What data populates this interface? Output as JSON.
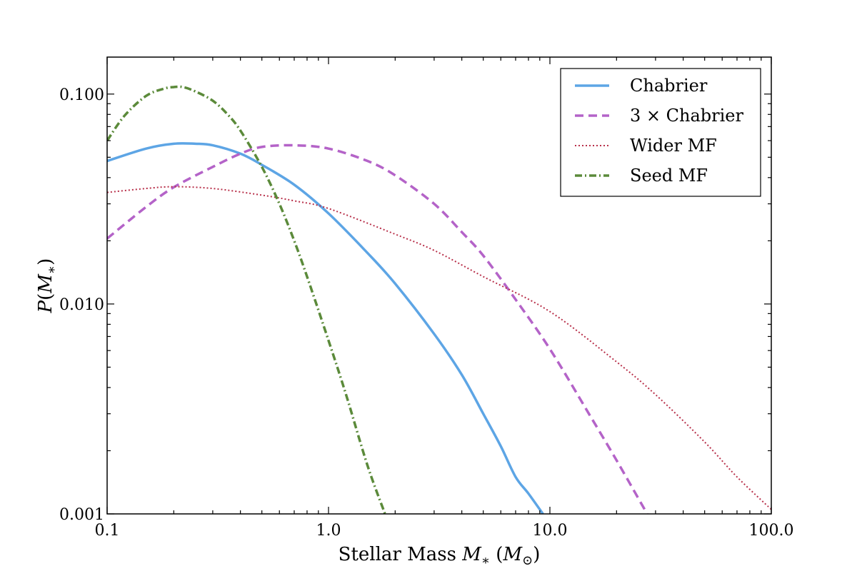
{
  "chart_data": {
    "type": "line",
    "xlabel": {
      "prefix": "Stellar Mass ",
      "symbol": "M",
      "sub": "∗",
      "unit_open": " (",
      "unit_symbol": "M",
      "unit_sub": "⊙",
      "unit_close": ")"
    },
    "ylabel": {
      "symbol": "P",
      "open": "(",
      "arg": "M",
      "sub": "∗",
      "close": ")"
    },
    "x_scale": "log",
    "y_scale": "log",
    "xlim": [
      0.1,
      100.0
    ],
    "ylim": [
      0.001,
      0.15
    ],
    "x_ticks": [
      {
        "value": 0.1,
        "label": "0.1"
      },
      {
        "value": 1.0,
        "label": "1.0"
      },
      {
        "value": 10.0,
        "label": "10.0"
      },
      {
        "value": 100.0,
        "label": "100.0"
      }
    ],
    "y_ticks": [
      {
        "value": 0.001,
        "label": "0.001"
      },
      {
        "value": 0.01,
        "label": "0.010"
      },
      {
        "value": 0.1,
        "label": "0.100"
      }
    ],
    "grid": false,
    "legend_position": "top-right",
    "series": [
      {
        "name": "Chabrier",
        "color": "#5da5e5",
        "style": "solid",
        "x": [
          0.1,
          0.15,
          0.2,
          0.25,
          0.3,
          0.4,
          0.5,
          0.7,
          1.0,
          1.5,
          2.0,
          3.0,
          4.0,
          5.0,
          6.0,
          7.0,
          8.0,
          9.3
        ],
        "y": [
          0.048,
          0.055,
          0.058,
          0.058,
          0.057,
          0.052,
          0.046,
          0.037,
          0.027,
          0.0175,
          0.0125,
          0.0072,
          0.0046,
          0.003,
          0.0021,
          0.0015,
          0.00125,
          0.001
        ]
      },
      {
        "name": "3 × Chabrier",
        "color": "#b463c8",
        "style": "dashed",
        "x": [
          0.1,
          0.15,
          0.2,
          0.3,
          0.4,
          0.5,
          0.7,
          1.0,
          1.5,
          2.0,
          3.0,
          4.0,
          5.0,
          7.0,
          10.0,
          15.0,
          20.0,
          27.5
        ],
        "y": [
          0.0205,
          0.029,
          0.036,
          0.045,
          0.052,
          0.056,
          0.057,
          0.055,
          0.048,
          0.041,
          0.03,
          0.022,
          0.017,
          0.0105,
          0.0061,
          0.003,
          0.0018,
          0.001
        ]
      },
      {
        "name": "Wider MF",
        "color": "#b8304a",
        "style": "dotted",
        "x": [
          0.1,
          0.15,
          0.2,
          0.3,
          0.5,
          0.7,
          1.0,
          2.0,
          3.0,
          5.0,
          10.0,
          20.0,
          30.0,
          50.0,
          70.0,
          100.0
        ],
        "y": [
          0.034,
          0.0355,
          0.0362,
          0.0355,
          0.033,
          0.031,
          0.0285,
          0.0215,
          0.018,
          0.0135,
          0.0092,
          0.0053,
          0.0037,
          0.0022,
          0.0015,
          0.00105
        ]
      },
      {
        "name": "Seed MF",
        "color": "#5b8a3a",
        "style": "dashdot",
        "x": [
          0.1,
          0.12,
          0.15,
          0.18,
          0.2,
          0.22,
          0.25,
          0.3,
          0.35,
          0.4,
          0.5,
          0.6,
          0.7,
          0.8,
          1.0,
          1.2,
          1.5,
          1.8
        ],
        "y": [
          0.06,
          0.079,
          0.098,
          0.106,
          0.108,
          0.108,
          0.103,
          0.093,
          0.08,
          0.067,
          0.045,
          0.03,
          0.02,
          0.0135,
          0.0067,
          0.0037,
          0.0017,
          0.001
        ]
      }
    ]
  }
}
